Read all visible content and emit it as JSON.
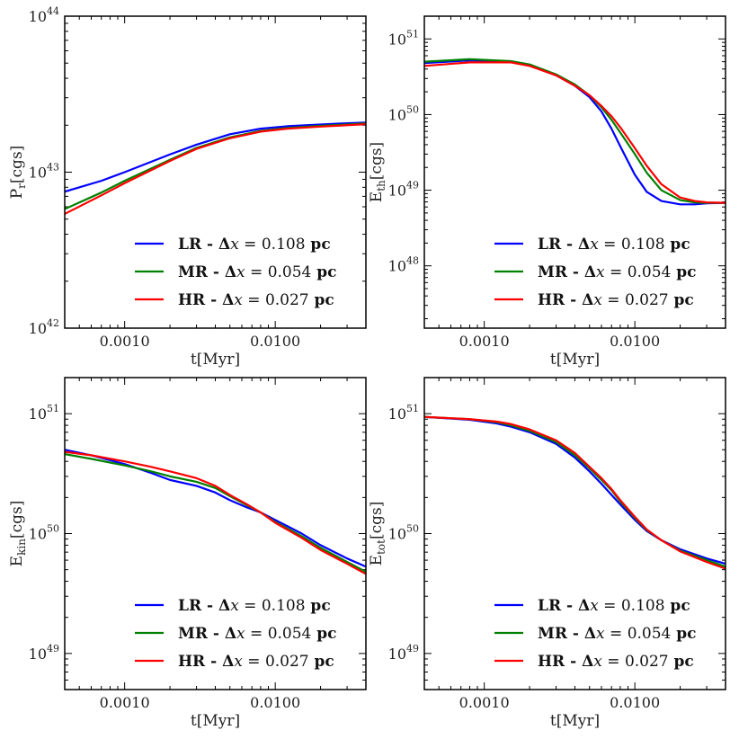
{
  "chart_data": [
    {
      "type": "line",
      "panel": "top-left",
      "xscale": "log",
      "yscale": "log",
      "xlim": [
        0.0004,
        0.04
      ],
      "ylim": [
        1e+42,
        1e+44
      ],
      "xlabel": "t[Myr]",
      "ylabel_main": "P",
      "ylabel_sub": "r",
      "ylabel_unit": "[cgs]",
      "x_tick_labels": [
        "0.0010",
        "0.0100"
      ],
      "x_tick_values": [
        0.001,
        0.01
      ],
      "y_ticks": [
        {
          "base": "10",
          "exp": "42",
          "value": 1e+42
        },
        {
          "base": "10",
          "exp": "43",
          "value": 1e+43
        },
        {
          "base": "10",
          "exp": "44",
          "value": 1e+44
        }
      ],
      "legend_position": "lower-right",
      "series": [
        {
          "name": "LR",
          "dx": "0.108",
          "color": "#0000ff",
          "x": [
            0.0004,
            0.0007,
            0.001,
            0.002,
            0.003,
            0.005,
            0.008,
            0.012,
            0.02,
            0.03,
            0.04
          ],
          "y": [
            7.5e+42,
            8.8e+42,
            1e+43,
            1.3e+43,
            1.5e+43,
            1.75e+43,
            1.9e+43,
            1.97e+43,
            2.02e+43,
            2.06e+43,
            2.08e+43
          ]
        },
        {
          "name": "MR",
          "dx": "0.054",
          "color": "#008000",
          "x": [
            0.0004,
            0.0007,
            0.001,
            0.002,
            0.003,
            0.005,
            0.008,
            0.012,
            0.02,
            0.03,
            0.04
          ],
          "y": [
            5.8e+42,
            7.4e+42,
            8.8e+42,
            1.2e+43,
            1.43e+43,
            1.67e+43,
            1.84e+43,
            1.92e+43,
            1.98e+43,
            2.02e+43,
            2.05e+43
          ]
        },
        {
          "name": "HR",
          "dx": "0.027",
          "color": "#ff0000",
          "x": [
            0.0004,
            0.0007,
            0.001,
            0.002,
            0.003,
            0.005,
            0.008,
            0.012,
            0.02,
            0.03,
            0.04
          ],
          "y": [
            5.4e+42,
            7.1e+42,
            8.5e+42,
            1.18e+43,
            1.41e+43,
            1.65e+43,
            1.82e+43,
            1.9e+43,
            1.96e+43,
            2e+43,
            2.03e+43
          ]
        }
      ]
    },
    {
      "type": "line",
      "panel": "top-right",
      "xscale": "log",
      "yscale": "log",
      "xlim": [
        0.0004,
        0.04
      ],
      "ylim": [
        1.5e+47,
        2e+51
      ],
      "xlabel": "t[Myr]",
      "ylabel_main": "E",
      "ylabel_sub": "th",
      "ylabel_unit": "[cgs]",
      "x_tick_labels": [
        "0.0010",
        "0.0100"
      ],
      "x_tick_values": [
        0.001,
        0.01
      ],
      "y_ticks": [
        {
          "base": "10",
          "exp": "48",
          "value": 1e+48
        },
        {
          "base": "10",
          "exp": "49",
          "value": 1e+49
        },
        {
          "base": "10",
          "exp": "50",
          "value": 1e+50
        },
        {
          "base": "10",
          "exp": "51",
          "value": 1e+51
        }
      ],
      "legend_position": "lower-right",
      "series": [
        {
          "name": "LR",
          "dx": "0.108",
          "color": "#0000ff",
          "x": [
            0.0004,
            0.0008,
            0.0015,
            0.002,
            0.003,
            0.004,
            0.005,
            0.006,
            0.007,
            0.008,
            0.01,
            0.012,
            0.015,
            0.02,
            0.025,
            0.03,
            0.04
          ],
          "y": [
            4.8e+50,
            5.2e+50,
            5e+50,
            4.5e+50,
            3.3e+50,
            2.4e+50,
            1.7e+50,
            1.1e+50,
            6.5e+49,
            3.8e+49,
            1.6e+49,
            9.5e+48,
            7.2e+48,
            6.5e+48,
            6.5e+48,
            6.7e+48,
            6.8e+48
          ]
        },
        {
          "name": "MR",
          "dx": "0.054",
          "color": "#008000",
          "x": [
            0.0004,
            0.0008,
            0.0015,
            0.002,
            0.003,
            0.004,
            0.005,
            0.006,
            0.007,
            0.008,
            0.01,
            0.012,
            0.015,
            0.02,
            0.025,
            0.03,
            0.04
          ],
          "y": [
            5e+50,
            5.4e+50,
            5.1e+50,
            4.6e+50,
            3.4e+50,
            2.5e+50,
            1.8e+50,
            1.25e+50,
            8.5e+49,
            5.8e+49,
            3e+49,
            1.7e+49,
            1e+49,
            7.4e+48,
            6.9e+48,
            6.8e+48,
            6.8e+48
          ]
        },
        {
          "name": "HR",
          "dx": "0.027",
          "color": "#ff0000",
          "x": [
            0.0004,
            0.0008,
            0.0015,
            0.002,
            0.003,
            0.004,
            0.005,
            0.006,
            0.007,
            0.008,
            0.01,
            0.012,
            0.015,
            0.02,
            0.025,
            0.03,
            0.04
          ],
          "y": [
            4.4e+50,
            4.9e+50,
            4.9e+50,
            4.4e+50,
            3.3e+50,
            2.4e+50,
            1.8e+50,
            1.3e+50,
            9.5e+49,
            6.8e+49,
            3.6e+49,
            2.1e+49,
            1.2e+49,
            8e+48,
            7.2e+48,
            6.9e+48,
            6.8e+48
          ]
        }
      ]
    },
    {
      "type": "line",
      "panel": "bottom-left",
      "xscale": "log",
      "yscale": "log",
      "xlim": [
        0.0004,
        0.04
      ],
      "ylim": [
        5e+48,
        2e+51
      ],
      "xlabel": "t[Myr]",
      "ylabel_main": "E",
      "ylabel_sub": "kin",
      "ylabel_unit": "[cgs]",
      "x_tick_labels": [
        "0.0010",
        "0.0100"
      ],
      "x_tick_values": [
        0.001,
        0.01
      ],
      "y_ticks": [
        {
          "base": "10",
          "exp": "49",
          "value": 1e+49
        },
        {
          "base": "10",
          "exp": "50",
          "value": 1e+50
        },
        {
          "base": "10",
          "exp": "51",
          "value": 1e+51
        }
      ],
      "legend_position": "lower-right",
      "series": [
        {
          "name": "LR",
          "dx": "0.108",
          "color": "#0000ff",
          "x": [
            0.0004,
            0.0006,
            0.001,
            0.0015,
            0.002,
            0.003,
            0.004,
            0.005,
            0.0065,
            0.008,
            0.01,
            0.015,
            0.02,
            0.03,
            0.04
          ],
          "y": [
            5e+50,
            4.5e+50,
            3.8e+50,
            3.2e+50,
            2.8e+50,
            2.5e+50,
            2.2e+50,
            1.9e+50,
            1.65e+50,
            1.5e+50,
            1.3e+50,
            1e+50,
            8e+49,
            6.2e+49,
            5.3e+49
          ]
        },
        {
          "name": "MR",
          "dx": "0.054",
          "color": "#008000",
          "x": [
            0.0004,
            0.0006,
            0.001,
            0.0015,
            0.002,
            0.003,
            0.004,
            0.005,
            0.0065,
            0.008,
            0.01,
            0.015,
            0.02,
            0.03,
            0.04
          ],
          "y": [
            4.6e+50,
            4.2e+50,
            3.7e+50,
            3.3e+50,
            3e+50,
            2.7e+50,
            2.4e+50,
            2.05e+50,
            1.72e+50,
            1.5e+50,
            1.25e+50,
            9.5e+49,
            7.6e+49,
            5.8e+49,
            4.8e+49
          ]
        },
        {
          "name": "HR",
          "dx": "0.027",
          "color": "#ff0000",
          "x": [
            0.0004,
            0.0006,
            0.001,
            0.0015,
            0.002,
            0.003,
            0.004,
            0.005,
            0.0065,
            0.008,
            0.01,
            0.015,
            0.02,
            0.03,
            0.04
          ],
          "y": [
            4.8e+50,
            4.5e+50,
            4e+50,
            3.6e+50,
            3.3e+50,
            2.9e+50,
            2.5e+50,
            2.1e+50,
            1.75e+50,
            1.5e+50,
            1.23e+50,
            9.2e+49,
            7.3e+49,
            5.6e+49,
            4.6e+49
          ]
        }
      ]
    },
    {
      "type": "line",
      "panel": "bottom-right",
      "xscale": "log",
      "yscale": "log",
      "xlim": [
        0.0004,
        0.04
      ],
      "ylim": [
        5e+48,
        2e+51
      ],
      "xlabel": "t[Myr]",
      "ylabel_main": "E",
      "ylabel_sub": "tot",
      "ylabel_unit": "[cgs]",
      "x_tick_labels": [
        "0.0010",
        "0.0100"
      ],
      "x_tick_values": [
        0.001,
        0.01
      ],
      "y_ticks": [
        {
          "base": "10",
          "exp": "49",
          "value": 1e+49
        },
        {
          "base": "10",
          "exp": "50",
          "value": 1e+50
        },
        {
          "base": "10",
          "exp": "51",
          "value": 1e+51
        }
      ],
      "legend_position": "lower-right",
      "series": [
        {
          "name": "LR",
          "dx": "0.108",
          "color": "#0000ff",
          "x": [
            0.0004,
            0.0008,
            0.0012,
            0.0015,
            0.002,
            0.003,
            0.004,
            0.005,
            0.006,
            0.007,
            0.008,
            0.01,
            0.012,
            0.015,
            0.02,
            0.03,
            0.04
          ],
          "y": [
            9.4e+50,
            8.9e+50,
            8.3e+50,
            7.8e+50,
            7e+50,
            5.6e+50,
            4.3e+50,
            3.3e+50,
            2.6e+50,
            2.1e+50,
            1.75e+50,
            1.3e+50,
            1.05e+50,
            8.8e+49,
            7.4e+49,
            6.2e+49,
            5.6e+49
          ]
        },
        {
          "name": "MR",
          "dx": "0.054",
          "color": "#008000",
          "x": [
            0.0004,
            0.0008,
            0.0012,
            0.0015,
            0.002,
            0.003,
            0.004,
            0.005,
            0.006,
            0.007,
            0.008,
            0.01,
            0.012,
            0.015,
            0.02,
            0.03,
            0.04
          ],
          "y": [
            9.4e+50,
            9e+50,
            8.5e+50,
            8e+50,
            7.2e+50,
            5.8e+50,
            4.5e+50,
            3.5e+50,
            2.8e+50,
            2.3e+50,
            1.85e+50,
            1.35e+50,
            1.07e+50,
            8.8e+49,
            7.2e+49,
            6e+49,
            5.3e+49
          ]
        },
        {
          "name": "HR",
          "dx": "0.027",
          "color": "#ff0000",
          "x": [
            0.0004,
            0.0008,
            0.0012,
            0.0015,
            0.002,
            0.003,
            0.004,
            0.005,
            0.006,
            0.007,
            0.008,
            0.01,
            0.012,
            0.015,
            0.02,
            0.03,
            0.04
          ],
          "y": [
            9.4e+50,
            9e+50,
            8.6e+50,
            8.2e+50,
            7.4e+50,
            6e+50,
            4.7e+50,
            3.6e+50,
            2.9e+50,
            2.35e+50,
            1.9e+50,
            1.38e+50,
            1.08e+50,
            8.8e+49,
            7.1e+49,
            5.8e+49,
            5.1e+49
          ]
        }
      ]
    }
  ]
}
